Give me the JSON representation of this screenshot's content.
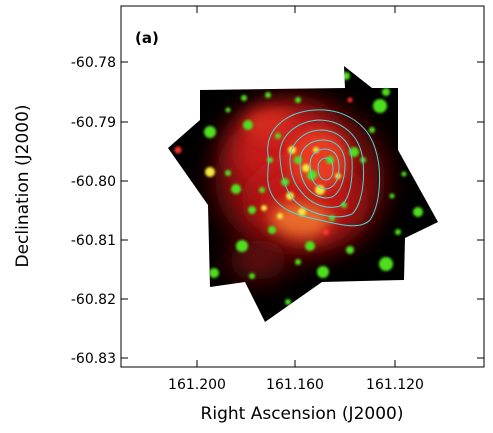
{
  "panel_label": "(a)",
  "chart_data": {
    "type": "image",
    "xlabel": "Right Ascension (J2000)",
    "ylabel": "Declination (J2000)",
    "x_ticks": [
      "161.200",
      "161.160",
      "161.120"
    ],
    "y_ticks": [
      "-60.78",
      "-60.79",
      "-60.80",
      "-60.81",
      "-60.82",
      "-60.83"
    ],
    "grid": false,
    "colors": {
      "background": "#000000",
      "diffuse_emission": "#e01818",
      "point_sources": "#4ee01e",
      "yellow_sources": "#f2e93a",
      "contours": "#4fd6d6",
      "frame": "#000000"
    }
  }
}
